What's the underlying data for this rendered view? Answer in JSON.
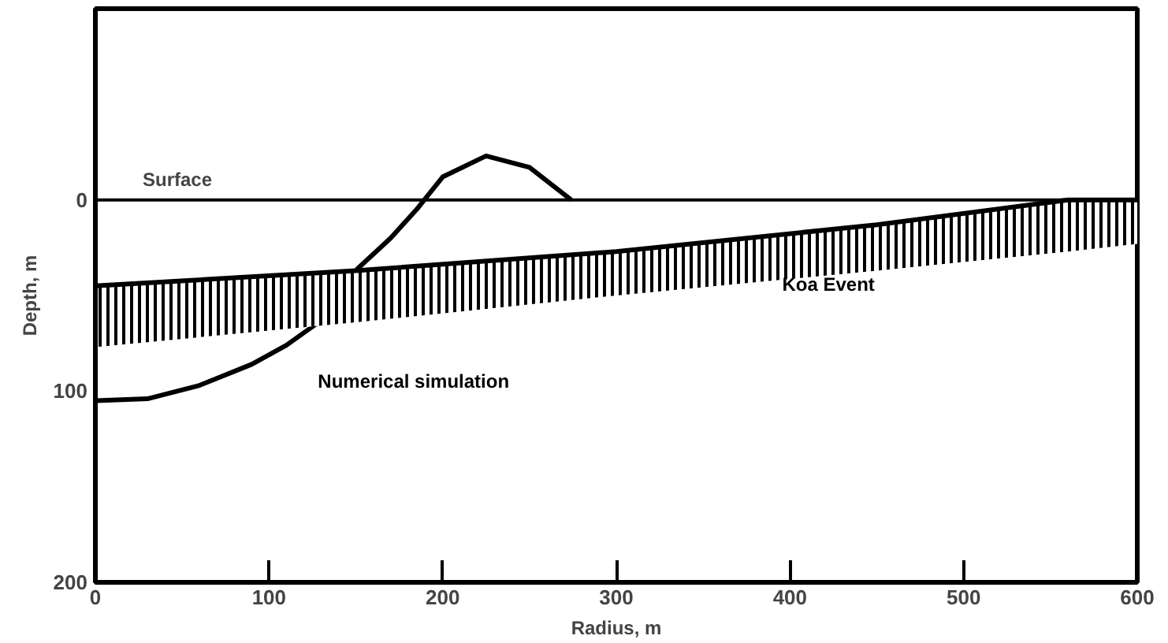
{
  "chart_data": {
    "type": "line",
    "xlabel": "Radius, m",
    "ylabel": "Depth, m",
    "xlim": [
      0,
      600
    ],
    "ylim": [
      200,
      -100
    ],
    "xticks": [
      0,
      100,
      200,
      300,
      400,
      500,
      600
    ],
    "yticks": [
      0,
      100,
      200
    ],
    "grid": false,
    "series": [
      {
        "name": "Numerical simulation",
        "color": "#000000",
        "x": [
          0,
          30,
          60,
          90,
          110,
          127,
          151,
          170,
          185,
          200,
          225,
          250,
          274
        ],
        "values": [
          105,
          104,
          97,
          86,
          76,
          65,
          36,
          20,
          5,
          -12,
          -23,
          -17,
          0
        ]
      },
      {
        "name": "Koa Event",
        "color": "#000000",
        "x": [
          0,
          150,
          300,
          450,
          560,
          600
        ],
        "values": [
          45,
          37,
          27,
          13,
          0,
          0
        ],
        "lower": [
          45,
          37,
          27,
          13,
          0,
          0
        ],
        "upper": [
          77,
          64,
          50,
          37,
          27,
          23
        ]
      }
    ],
    "ref_lines": [
      {
        "axis": "y",
        "value": 0,
        "label": "Surface",
        "color": "#000000",
        "line_style": "solid"
      }
    ]
  }
}
